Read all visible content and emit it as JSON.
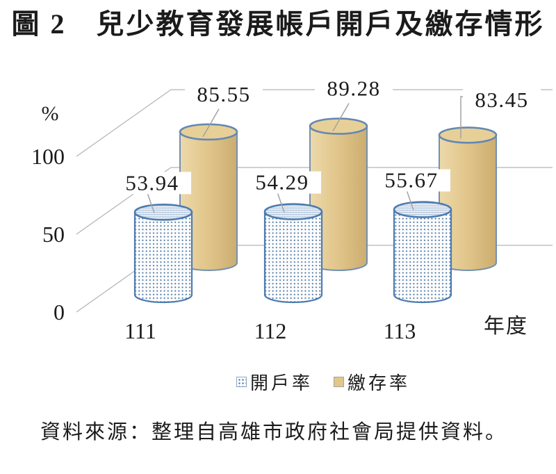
{
  "title": "圖 2　兒少教育發展帳戶開戶及繳存情形",
  "source_note": "資料來源：整理自高雄市政府社會局提供資料。",
  "chart_data": {
    "type": "bar",
    "subtype": "3d-cylinder",
    "title": "圖 2　兒少教育發展帳戶開戶及繳存情形",
    "categories": [
      "111",
      "112",
      "113"
    ],
    "series": [
      {
        "name": "開戶率",
        "values": [
          53.94,
          54.29,
          55.67
        ],
        "style": "dotted-white-blue"
      },
      {
        "name": "繳存率",
        "values": [
          85.55,
          89.28,
          83.45
        ],
        "style": "solid-tan"
      }
    ],
    "unit_label": "%",
    "xlabel": "年度",
    "y_ticks": [
      0,
      50,
      100
    ],
    "ylim": [
      0,
      110
    ],
    "grid": true,
    "legend_position": "bottom",
    "colors": {
      "open_rate_fill": "#fdfdfe",
      "open_rate_dot": "#44719f",
      "deposit_rate_fill": "#e2c78c",
      "cylinder_outline": "#5f85b0",
      "gridline": "#b5b5b5",
      "leader_line": "#a2a2a2",
      "text": "#1b1b1b"
    }
  }
}
